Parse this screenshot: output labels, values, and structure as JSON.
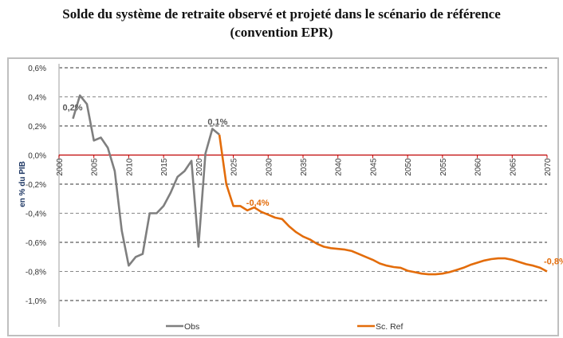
{
  "chart_data": {
    "type": "line",
    "title_line1": "Solde du système de retraite observé et projeté dans le scénario de référence",
    "title_line2": "(convention EPR)",
    "ylabel": "en % du PIB",
    "xlabel": "",
    "xlim": [
      2000,
      2070
    ],
    "ylim": [
      -1.0,
      0.6
    ],
    "x_ticks": [
      "2000",
      "2005",
      "2010",
      "2015",
      "2020",
      "2025",
      "2030",
      "2035",
      "2040",
      "2045",
      "2050",
      "2055",
      "2060",
      "2065",
      "2070"
    ],
    "y_ticks": [
      "0,6%",
      "0,4%",
      "0,2%",
      "0,0%",
      "-0,2%",
      "-0,4%",
      "-0,6%",
      "-0,8%",
      "-1,0%"
    ],
    "y_tick_values": [
      0.6,
      0.4,
      0.2,
      0.0,
      -0.2,
      -0.4,
      -0.6,
      -0.8,
      -1.0
    ],
    "grid": "horizontal dashed",
    "legend_position": "bottom",
    "zero_line_color": "#c00000",
    "series": [
      {
        "name": "Obs",
        "color": "#7f7f7f",
        "x": [
          2002,
          2003,
          2004,
          2005,
          2006,
          2007,
          2008,
          2009,
          2010,
          2011,
          2012,
          2013,
          2014,
          2015,
          2016,
          2017,
          2018,
          2019,
          2020,
          2021,
          2022,
          2023
        ],
        "y": [
          0.25,
          0.41,
          0.35,
          0.1,
          0.12,
          0.05,
          -0.11,
          -0.52,
          -0.76,
          -0.7,
          -0.68,
          -0.4,
          -0.4,
          -0.35,
          -0.26,
          -0.15,
          -0.11,
          -0.04,
          -0.63,
          0.01,
          0.18,
          0.14
        ]
      },
      {
        "name": "Sc. Ref",
        "color": "#e36c0a",
        "x": [
          2023,
          2024,
          2025,
          2026,
          2027,
          2028,
          2029,
          2030,
          2031,
          2032,
          2033,
          2034,
          2035,
          2036,
          2037,
          2038,
          2039,
          2040,
          2041,
          2042,
          2043,
          2044,
          2045,
          2046,
          2047,
          2048,
          2049,
          2050,
          2051,
          2052,
          2053,
          2054,
          2055,
          2056,
          2057,
          2058,
          2059,
          2060,
          2061,
          2062,
          2063,
          2064,
          2065,
          2066,
          2067,
          2068,
          2069,
          2070
        ],
        "y": [
          0.14,
          -0.2,
          -0.35,
          -0.35,
          -0.38,
          -0.36,
          -0.39,
          -0.41,
          -0.43,
          -0.44,
          -0.49,
          -0.53,
          -0.56,
          -0.58,
          -0.61,
          -0.63,
          -0.64,
          -0.645,
          -0.65,
          -0.66,
          -0.68,
          -0.7,
          -0.72,
          -0.745,
          -0.76,
          -0.77,
          -0.775,
          -0.795,
          -0.805,
          -0.815,
          -0.82,
          -0.82,
          -0.815,
          -0.805,
          -0.79,
          -0.775,
          -0.755,
          -0.74,
          -0.725,
          -0.715,
          -0.71,
          -0.71,
          -0.72,
          -0.735,
          -0.75,
          -0.76,
          -0.775,
          -0.8
        ]
      }
    ],
    "annotations": [
      {
        "text": "0,2%",
        "x": 2002,
        "y": 0.33,
        "color": "#595959"
      },
      {
        "text": "0,1%",
        "x": 2022,
        "y": 0.18,
        "color": "#595959"
      },
      {
        "text": "-0,4%",
        "x": 2028,
        "y": -0.36,
        "color": "#e36c0a"
      },
      {
        "text": "-0,8%",
        "x": 2070,
        "y": -0.8,
        "color": "#e36c0a"
      }
    ]
  }
}
